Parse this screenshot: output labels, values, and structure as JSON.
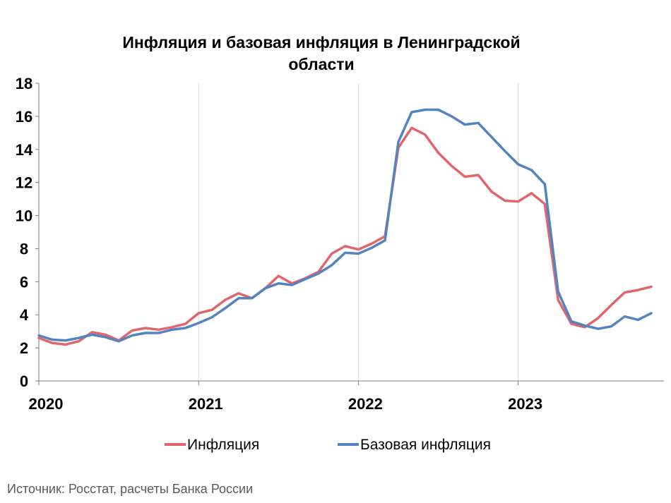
{
  "chart_data": {
    "type": "line",
    "title_line1": "Инфляция и базовая инфляция в Ленинградской",
    "title_line2": "области",
    "xlabel": "",
    "ylabel": "",
    "ylim": [
      0,
      18
    ],
    "y_ticks": [
      0,
      2,
      4,
      6,
      8,
      10,
      12,
      14,
      16,
      18
    ],
    "x_ticks": [
      "2020",
      "2021",
      "2022",
      "2023"
    ],
    "x_start": "2020-01",
    "grid": "vertical",
    "legend_position": "bottom",
    "colors": {
      "inflation": "#E0666B",
      "core": "#5583BE"
    },
    "series": [
      {
        "name": "Инфляция",
        "key": "inflation",
        "values": [
          2.6,
          2.3,
          2.2,
          2.4,
          2.95,
          2.8,
          2.45,
          3.05,
          3.2,
          3.1,
          3.25,
          3.45,
          4.1,
          4.3,
          4.9,
          5.3,
          5.0,
          5.6,
          6.35,
          5.9,
          6.2,
          6.6,
          7.7,
          8.15,
          7.95,
          8.3,
          8.75,
          14.1,
          15.3,
          14.9,
          13.8,
          13.0,
          12.35,
          12.45,
          11.45,
          10.9,
          10.85,
          11.35,
          10.7,
          4.9,
          3.45,
          3.25,
          3.8,
          4.6,
          5.35,
          5.5,
          5.7
        ]
      },
      {
        "name": "Базовая инфляция",
        "key": "core",
        "values": [
          2.75,
          2.5,
          2.45,
          2.6,
          2.8,
          2.65,
          2.4,
          2.75,
          2.9,
          2.9,
          3.1,
          3.2,
          3.5,
          3.85,
          4.4,
          5.0,
          5.0,
          5.6,
          5.9,
          5.8,
          6.15,
          6.5,
          7.0,
          7.75,
          7.7,
          8.05,
          8.5,
          14.45,
          16.25,
          16.4,
          16.4,
          16.0,
          15.5,
          15.6,
          14.75,
          13.9,
          13.1,
          12.75,
          11.9,
          5.4,
          3.6,
          3.35,
          3.15,
          3.3,
          3.9,
          3.7,
          4.1
        ]
      }
    ]
  },
  "source_text": "Источник: Росстат, расчеты Банка России"
}
